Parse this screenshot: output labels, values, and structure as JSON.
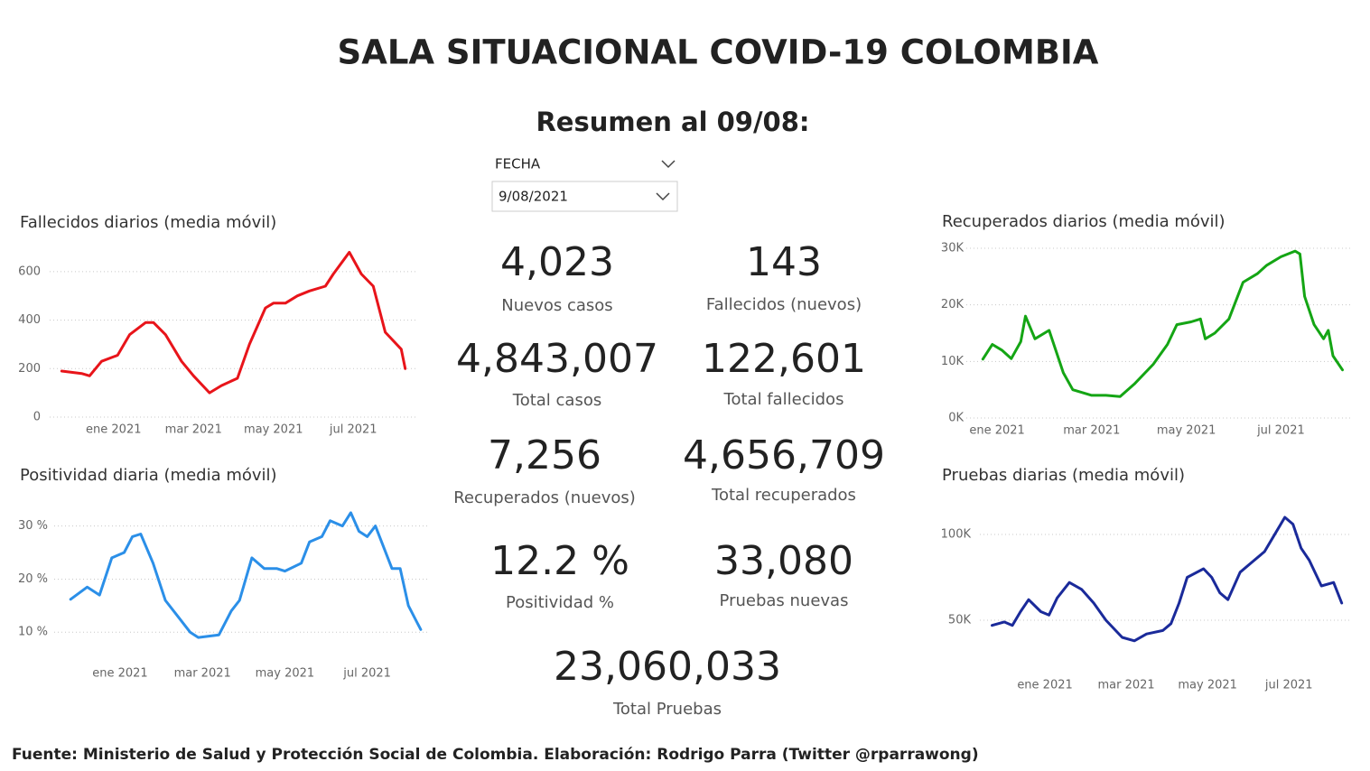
{
  "header": {
    "title": "SALA SITUACIONAL COVID-19 COLOMBIA",
    "subtitle": "Resumen al 09/08:"
  },
  "filter": {
    "label": "FECHA",
    "value": "9/08/2021"
  },
  "kpis": [
    {
      "value": "4,023",
      "label": "Nuevos casos"
    },
    {
      "value": "143",
      "label": "Fallecidos (nuevos)"
    },
    {
      "value": "4,843,007",
      "label": "Total casos"
    },
    {
      "value": "122,601",
      "label": "Total fallecidos"
    },
    {
      "value": "7,256",
      "label": "Recuperados (nuevos)"
    },
    {
      "value": "4,656,709",
      "label": "Total recuperados"
    },
    {
      "value": "12.2 %",
      "label": "Positividad %"
    },
    {
      "value": "33,080",
      "label": "Pruebas nuevas"
    },
    {
      "value": "23,060,033",
      "label": "Total Pruebas"
    }
  ],
  "footer": "Fuente: Ministerio de Salud y Protección Social de Colombia. Elaboración: Rodrigo Parra (Twitter @rparrawong)",
  "chart_data": [
    {
      "type": "line",
      "title": "Fallecidos diarios (media móvil)",
      "color": "#e8141a",
      "grid": true,
      "x": [
        -0.3,
        0.2,
        0.4,
        0.7,
        1.1,
        1.4,
        1.8,
        2.0,
        2.3,
        2.7,
        3.0,
        3.4,
        3.7,
        4.1,
        4.4,
        4.8,
        5.0,
        5.3,
        5.6,
        5.9,
        6.3,
        6.5,
        6.9,
        7.2,
        7.5,
        7.8,
        8.2,
        8.3
      ],
      "values": [
        190,
        180,
        170,
        230,
        255,
        340,
        390,
        390,
        340,
        230,
        170,
        100,
        130,
        160,
        300,
        450,
        470,
        470,
        500,
        520,
        540,
        590,
        680,
        590,
        540,
        350,
        280,
        200
      ],
      "xlim": [
        -0.6,
        8.6
      ],
      "ylim": [
        0,
        700
      ],
      "xticks": [
        {
          "value": 1,
          "label": "ene 2021"
        },
        {
          "value": 3,
          "label": "mar 2021"
        },
        {
          "value": 5,
          "label": "may 2021"
        },
        {
          "value": 7,
          "label": "jul 2021"
        }
      ],
      "yticks": [
        0,
        200,
        400,
        600
      ]
    },
    {
      "type": "line",
      "title": "Positividad diaria (media móvil)",
      "color": "#2b8fe8",
      "grid": true,
      "x": [
        -0.2,
        0.2,
        0.5,
        0.8,
        1.1,
        1.3,
        1.5,
        1.8,
        2.1,
        2.4,
        2.7,
        2.9,
        3.4,
        3.7,
        3.9,
        4.2,
        4.5,
        4.8,
        5.0,
        5.4,
        5.6,
        5.9,
        6.1,
        6.4,
        6.6,
        6.8,
        7.0,
        7.2,
        7.3,
        7.6,
        7.8,
        8.0,
        8.2,
        8.3
      ],
      "values": [
        16.2,
        18.5,
        17,
        24,
        25,
        28,
        28.5,
        23,
        16,
        13,
        10,
        9,
        9.5,
        14,
        16,
        24,
        22,
        22,
        21.5,
        23,
        27,
        28,
        31,
        30,
        32.5,
        29,
        28,
        30,
        28,
        22,
        22,
        15,
        12,
        10.5
      ],
      "xlim": [
        -0.6,
        8.5
      ],
      "ylim": [
        8,
        33
      ],
      "xticks": [
        {
          "value": 1,
          "label": "ene 2021"
        },
        {
          "value": 3,
          "label": "mar 2021"
        },
        {
          "value": 5,
          "label": "may 2021"
        },
        {
          "value": 7,
          "label": "jul 2021"
        }
      ],
      "yticks": [
        {
          "value": 10,
          "label": "10 %"
        },
        {
          "value": 20,
          "label": "20 %"
        },
        {
          "value": 30,
          "label": "30 %"
        }
      ]
    },
    {
      "type": "line",
      "title": "Recuperados diarios (media móvil)",
      "color": "#14a514",
      "grid": true,
      "x": [
        0.7,
        0.9,
        1.1,
        1.3,
        1.5,
        1.6,
        1.8,
        2.1,
        2.4,
        2.6,
        3.0,
        3.3,
        3.6,
        3.9,
        4.3,
        4.6,
        4.8,
        5.1,
        5.3,
        5.4,
        5.6,
        5.9,
        6.2,
        6.5,
        6.7,
        7.0,
        7.3,
        7.4,
        7.5,
        7.7,
        7.9,
        8.0,
        8.1,
        8.3
      ],
      "values": [
        10400,
        13000,
        12000,
        10500,
        13500,
        18000,
        14000,
        15500,
        8000,
        5000,
        4000,
        4000,
        3800,
        6000,
        9500,
        13000,
        16500,
        17000,
        17500,
        14000,
        15000,
        17500,
        24000,
        25500,
        27000,
        28500,
        29500,
        29000,
        21500,
        16500,
        14000,
        15500,
        11000,
        8500
      ],
      "xlim": [
        0.35,
        8.5
      ],
      "ylim": [
        0,
        30000
      ],
      "xticks": [
        {
          "value": 1,
          "label": "ene 2021"
        },
        {
          "value": 3,
          "label": "mar 2021"
        },
        {
          "value": 5,
          "label": "may 2021"
        },
        {
          "value": 7,
          "label": "jul 2021"
        }
      ],
      "yticks": [
        {
          "value": 0,
          "label": "0K"
        },
        {
          "value": 10000,
          "label": "10K"
        },
        {
          "value": 20000,
          "label": "20K"
        },
        {
          "value": 30000,
          "label": "30K"
        }
      ]
    },
    {
      "type": "line",
      "title": "Pruebas diarias (media móvil)",
      "color": "#1a2a9a",
      "grid": true,
      "x": [
        -0.3,
        0.0,
        0.2,
        0.4,
        0.6,
        0.9,
        1.1,
        1.3,
        1.6,
        1.9,
        2.2,
        2.5,
        2.9,
        3.2,
        3.5,
        3.9,
        4.1,
        4.3,
        4.5,
        4.9,
        5.1,
        5.3,
        5.5,
        5.8,
        6.1,
        6.4,
        6.6,
        6.9,
        7.1,
        7.3,
        7.5,
        7.8,
        8.1,
        8.3
      ],
      "values": [
        47000,
        49000,
        47000,
        55000,
        62000,
        55000,
        53000,
        63000,
        72000,
        68000,
        60000,
        50000,
        40000,
        38000,
        42000,
        44000,
        48000,
        60000,
        75000,
        80000,
        75000,
        66000,
        62000,
        78000,
        84000,
        90000,
        98000,
        110000,
        106000,
        92000,
        85000,
        70000,
        72000,
        60000
      ],
      "xlim": [
        -0.6,
        8.55
      ],
      "ylim": [
        25000,
        115000
      ],
      "xticks": [
        {
          "value": 1,
          "label": "ene 2021"
        },
        {
          "value": 3,
          "label": "mar 2021"
        },
        {
          "value": 5,
          "label": "may 2021"
        },
        {
          "value": 7,
          "label": "jul 2021"
        }
      ],
      "yticks": [
        {
          "value": 50000,
          "label": "50K"
        },
        {
          "value": 100000,
          "label": "100K"
        }
      ]
    }
  ]
}
